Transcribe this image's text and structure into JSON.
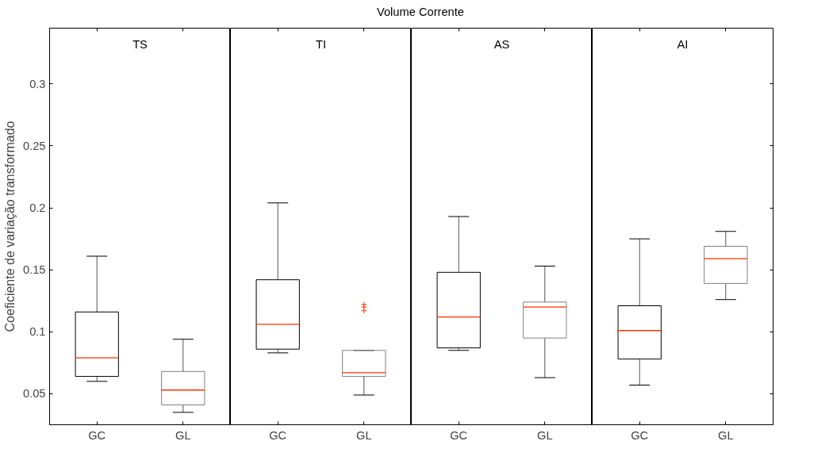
{
  "chart_data": [
    {
      "type": "box",
      "title": "TS",
      "annotations": [
        "Volume Corrente"
      ],
      "ylabel": "Coeficiente de variação transformado",
      "categories": [
        "GC",
        "GL"
      ],
      "colors": [
        "#000000",
        "#808080"
      ],
      "ylim": [
        0.025,
        0.345
      ],
      "yticks": [
        0.05,
        0.1,
        0.15,
        0.2,
        0.25,
        0.3
      ],
      "grid": false,
      "boxes": [
        {
          "low": 0.06,
          "q1": 0.064,
          "median": 0.079,
          "q3": 0.116,
          "high": 0.161
        },
        {
          "low": 0.035,
          "q1": 0.041,
          "median": 0.053,
          "q3": 0.068,
          "high": 0.094
        }
      ]
    },
    {
      "type": "box",
      "title": "TI",
      "categories": [
        "GC",
        "GL"
      ],
      "colors": [
        "#000000",
        "#808080"
      ],
      "ylim": [
        0.025,
        0.345
      ],
      "yticks": [
        0.05,
        0.1,
        0.15,
        0.2,
        0.25,
        0.3
      ],
      "tick_labels": "x",
      "grid": false,
      "boxes": [
        {
          "low": 0.083,
          "q1": 0.086,
          "median": 0.106,
          "q3": 0.142,
          "high": 0.204
        },
        {
          "low": 0.049,
          "q1": 0.064,
          "median": 0.067,
          "q3": 0.085,
          "high": 0.085,
          "outliers": [
            0.122,
            0.12,
            0.117
          ]
        }
      ]
    },
    {
      "type": "box",
      "title": "AS",
      "categories": [
        "GC",
        "GL"
      ],
      "colors": [
        "#000000",
        "#808080"
      ],
      "ylim": [
        0.025,
        0.345
      ],
      "yticks": [
        0.05,
        0.1,
        0.15,
        0.2,
        0.25,
        0.3
      ],
      "tick_labels": "x",
      "grid": false,
      "boxes": [
        {
          "low": 0.085,
          "q1": 0.087,
          "median": 0.112,
          "q3": 0.148,
          "high": 0.193
        },
        {
          "low": 0.063,
          "q1": 0.095,
          "median": 0.12,
          "q3": 0.124,
          "high": 0.153
        }
      ]
    },
    {
      "type": "box",
      "title": "AI",
      "categories": [
        "GC",
        "GL"
      ],
      "colors": [
        "#000000",
        "#808080"
      ],
      "ylim": [
        0.025,
        0.345
      ],
      "yticks": [
        0.05,
        0.1,
        0.15,
        0.2,
        0.25,
        0.3
      ],
      "tick_labels": "x",
      "grid": false,
      "boxes": [
        {
          "low": 0.057,
          "q1": 0.078,
          "median": 0.101,
          "q3": 0.121,
          "high": 0.175
        },
        {
          "low": 0.126,
          "q1": 0.139,
          "median": 0.159,
          "q3": 0.169,
          "high": 0.181
        }
      ]
    }
  ]
}
